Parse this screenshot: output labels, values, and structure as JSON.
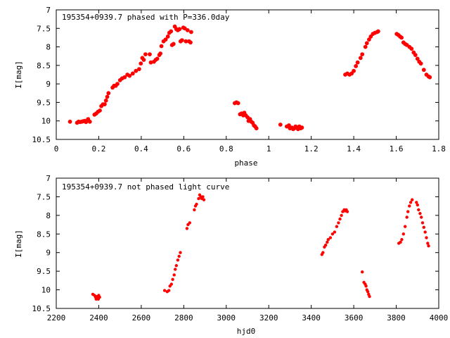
{
  "chart_data": [
    {
      "type": "scatter",
      "title": "195354+0939.7 phased with P=336.0day",
      "xlabel": "phase",
      "ylabel": "I[mag]",
      "xlim": [
        0,
        1.8
      ],
      "ylim": [
        10.5,
        7
      ],
      "y_inverted": true,
      "xticks": [
        "0",
        "0.2",
        "0.4",
        "0.6",
        "0.8",
        "1",
        "1.2",
        "1.4",
        "1.6",
        "1.8"
      ],
      "yticks": [
        "7",
        "7.5",
        "8",
        "8.5",
        "9",
        "9.5",
        "10",
        "10.5"
      ],
      "grid": false,
      "marker_color": "#ff0000",
      "series": [
        {
          "points": [
            [
              0.065,
              10.02
            ],
            [
              0.098,
              10.05
            ],
            [
              0.105,
              10.02
            ],
            [
              0.112,
              10.03
            ],
            [
              0.12,
              10.02
            ],
            [
              0.127,
              10.01
            ],
            [
              0.134,
              10.0
            ],
            [
              0.14,
              10.03
            ],
            [
              0.15,
              9.95
            ],
            [
              0.158,
              10.02
            ],
            [
              0.18,
              9.83
            ],
            [
              0.188,
              9.8
            ],
            [
              0.197,
              9.75
            ],
            [
              0.205,
              9.72
            ],
            [
              0.212,
              9.6
            ],
            [
              0.22,
              9.55
            ],
            [
              0.228,
              9.55
            ],
            [
              0.234,
              9.45
            ],
            [
              0.24,
              9.35
            ],
            [
              0.246,
              9.25
            ],
            [
              0.265,
              9.1
            ],
            [
              0.272,
              9.05
            ],
            [
              0.28,
              9.05
            ],
            [
              0.288,
              9.0
            ],
            [
              0.3,
              8.9
            ],
            [
              0.31,
              8.85
            ],
            [
              0.322,
              8.82
            ],
            [
              0.335,
              8.75
            ],
            [
              0.345,
              8.78
            ],
            [
              0.36,
              8.72
            ],
            [
              0.375,
              8.65
            ],
            [
              0.39,
              8.6
            ],
            [
              0.398,
              8.45
            ],
            [
              0.405,
              8.3
            ],
            [
              0.412,
              8.35
            ],
            [
              0.42,
              8.2
            ],
            [
              0.44,
              8.2
            ],
            [
              0.445,
              8.42
            ],
            [
              0.46,
              8.4
            ],
            [
              0.468,
              8.35
            ],
            [
              0.475,
              8.32
            ],
            [
              0.485,
              8.22
            ],
            [
              0.49,
              8.18
            ],
            [
              0.495,
              7.98
            ],
            [
              0.505,
              7.85
            ],
            [
              0.515,
              7.8
            ],
            [
              0.525,
              7.72
            ],
            [
              0.532,
              7.62
            ],
            [
              0.54,
              7.58
            ],
            [
              0.545,
              7.95
            ],
            [
              0.552,
              7.92
            ],
            [
              0.558,
              7.45
            ],
            [
              0.565,
              7.52
            ],
            [
              0.572,
              7.55
            ],
            [
              0.58,
              7.52
            ],
            [
              0.585,
              7.85
            ],
            [
              0.592,
              7.82
            ],
            [
              0.598,
              7.48
            ],
            [
              0.605,
              7.5
            ],
            [
              0.61,
              7.85
            ],
            [
              0.618,
              7.55
            ],
            [
              0.625,
              7.85
            ],
            [
              0.632,
              7.88
            ],
            [
              0.635,
              7.6
            ],
            [
              0.84,
              9.52
            ],
            [
              0.848,
              9.5
            ],
            [
              0.856,
              9.52
            ],
            [
              0.865,
              9.82
            ],
            [
              0.872,
              9.8
            ],
            [
              0.88,
              9.85
            ],
            [
              0.885,
              9.78
            ],
            [
              0.892,
              9.85
            ],
            [
              0.9,
              9.9
            ],
            [
              0.905,
              10.0
            ],
            [
              0.912,
              9.95
            ],
            [
              0.918,
              10.02
            ],
            [
              0.924,
              10.05
            ],
            [
              0.93,
              10.12
            ],
            [
              0.936,
              10.15
            ],
            [
              0.942,
              10.2
            ],
            [
              1.055,
              10.1
            ],
            [
              1.085,
              10.15
            ],
            [
              1.095,
              10.12
            ],
            [
              1.1,
              10.2
            ],
            [
              1.108,
              10.18
            ],
            [
              1.115,
              10.22
            ],
            [
              1.12,
              10.2
            ],
            [
              1.126,
              10.15
            ],
            [
              1.132,
              10.18
            ],
            [
              1.138,
              10.22
            ],
            [
              1.144,
              10.15
            ],
            [
              1.15,
              10.2
            ],
            [
              1.156,
              10.18
            ],
            [
              1.36,
              8.75
            ],
            [
              1.37,
              8.72
            ],
            [
              1.38,
              8.75
            ],
            [
              1.39,
              8.72
            ],
            [
              1.4,
              8.65
            ],
            [
              1.41,
              8.52
            ],
            [
              1.418,
              8.42
            ],
            [
              1.432,
              8.3
            ],
            [
              1.44,
              8.2
            ],
            [
              1.455,
              8.0
            ],
            [
              1.462,
              7.9
            ],
            [
              1.472,
              7.8
            ],
            [
              1.48,
              7.72
            ],
            [
              1.49,
              7.65
            ],
            [
              1.5,
              7.62
            ],
            [
              1.51,
              7.6
            ],
            [
              1.515,
              7.58
            ],
            [
              1.602,
              7.65
            ],
            [
              1.61,
              7.68
            ],
            [
              1.618,
              7.72
            ],
            [
              1.625,
              7.75
            ],
            [
              1.634,
              7.88
            ],
            [
              1.642,
              7.92
            ],
            [
              1.65,
              7.95
            ],
            [
              1.662,
              8.0
            ],
            [
              1.672,
              8.05
            ],
            [
              1.682,
              8.15
            ],
            [
              1.69,
              8.22
            ],
            [
              1.7,
              8.32
            ],
            [
              1.708,
              8.4
            ],
            [
              1.716,
              8.45
            ],
            [
              1.73,
              8.62
            ],
            [
              1.742,
              8.75
            ],
            [
              1.752,
              8.8
            ],
            [
              1.758,
              8.82
            ]
          ]
        }
      ]
    },
    {
      "type": "scatter",
      "title": "195354+0939.7 not phased light curve",
      "xlabel": "hjd0",
      "ylabel": "I[mag]",
      "xlim": [
        2200,
        4000
      ],
      "ylim": [
        10.5,
        7
      ],
      "y_inverted": true,
      "xticks": [
        "2200",
        "2400",
        "2600",
        "2800",
        "3000",
        "3200",
        "3400",
        "3600",
        "3800",
        "4000"
      ],
      "yticks": [
        "7",
        "7.5",
        "8",
        "8.5",
        "9",
        "9.5",
        "10",
        "10.5"
      ],
      "grid": false,
      "marker_color": "#ff0000",
      "series": [
        {
          "points": [
            [
              2372,
              10.12
            ],
            [
              2380,
              10.15
            ],
            [
              2385,
              10.2
            ],
            [
              2390,
              10.18
            ],
            [
              2395,
              10.22
            ],
            [
              2400,
              10.15
            ],
            [
              2404,
              10.2
            ],
            [
              2388,
              10.25
            ],
            [
              2398,
              10.25
            ],
            [
              2710,
              10.02
            ],
            [
              2722,
              10.05
            ],
            [
              2730,
              10.02
            ],
            [
              2735,
              9.9
            ],
            [
              2742,
              9.85
            ],
            [
              2748,
              9.72
            ],
            [
              2755,
              9.6
            ],
            [
              2760,
              9.45
            ],
            [
              2765,
              9.35
            ],
            [
              2772,
              9.2
            ],
            [
              2778,
              9.1
            ],
            [
              2784,
              9.0
            ],
            [
              2815,
              8.35
            ],
            [
              2820,
              8.25
            ],
            [
              2828,
              8.2
            ],
            [
              2850,
              7.85
            ],
            [
              2855,
              7.75
            ],
            [
              2860,
              7.7
            ],
            [
              2870,
              7.55
            ],
            [
              2875,
              7.45
            ],
            [
              2880,
              7.5
            ],
            [
              2885,
              7.55
            ],
            [
              2890,
              7.5
            ],
            [
              2895,
              7.58
            ],
            [
              3450,
              9.05
            ],
            [
              3455,
              9.0
            ],
            [
              3462,
              8.85
            ],
            [
              3468,
              8.8
            ],
            [
              3475,
              8.72
            ],
            [
              3480,
              8.65
            ],
            [
              3490,
              8.6
            ],
            [
              3500,
              8.5
            ],
            [
              3510,
              8.45
            ],
            [
              3520,
              8.3
            ],
            [
              3528,
              8.2
            ],
            [
              3535,
              8.1
            ],
            [
              3542,
              8.0
            ],
            [
              3548,
              7.9
            ],
            [
              3555,
              7.85
            ],
            [
              3560,
              7.88
            ],
            [
              3565,
              7.85
            ],
            [
              3570,
              7.9
            ],
            [
              3640,
              9.52
            ],
            [
              3648,
              9.8
            ],
            [
              3654,
              9.85
            ],
            [
              3658,
              9.9
            ],
            [
              3662,
              10.0
            ],
            [
              3666,
              10.05
            ],
            [
              3670,
              10.12
            ],
            [
              3674,
              10.18
            ],
            [
              3812,
              8.75
            ],
            [
              3820,
              8.72
            ],
            [
              3826,
              8.65
            ],
            [
              3834,
              8.5
            ],
            [
              3842,
              8.3
            ],
            [
              3850,
              8.05
            ],
            [
              3855,
              7.9
            ],
            [
              3862,
              7.75
            ],
            [
              3868,
              7.65
            ],
            [
              3875,
              7.58
            ],
            [
              3895,
              7.65
            ],
            [
              3900,
              7.72
            ],
            [
              3905,
              7.85
            ],
            [
              3912,
              7.95
            ],
            [
              3918,
              8.05
            ],
            [
              3924,
              8.2
            ],
            [
              3930,
              8.32
            ],
            [
              3936,
              8.45
            ],
            [
              3942,
              8.6
            ],
            [
              3948,
              8.75
            ],
            [
              3952,
              8.82
            ]
          ]
        }
      ]
    }
  ]
}
